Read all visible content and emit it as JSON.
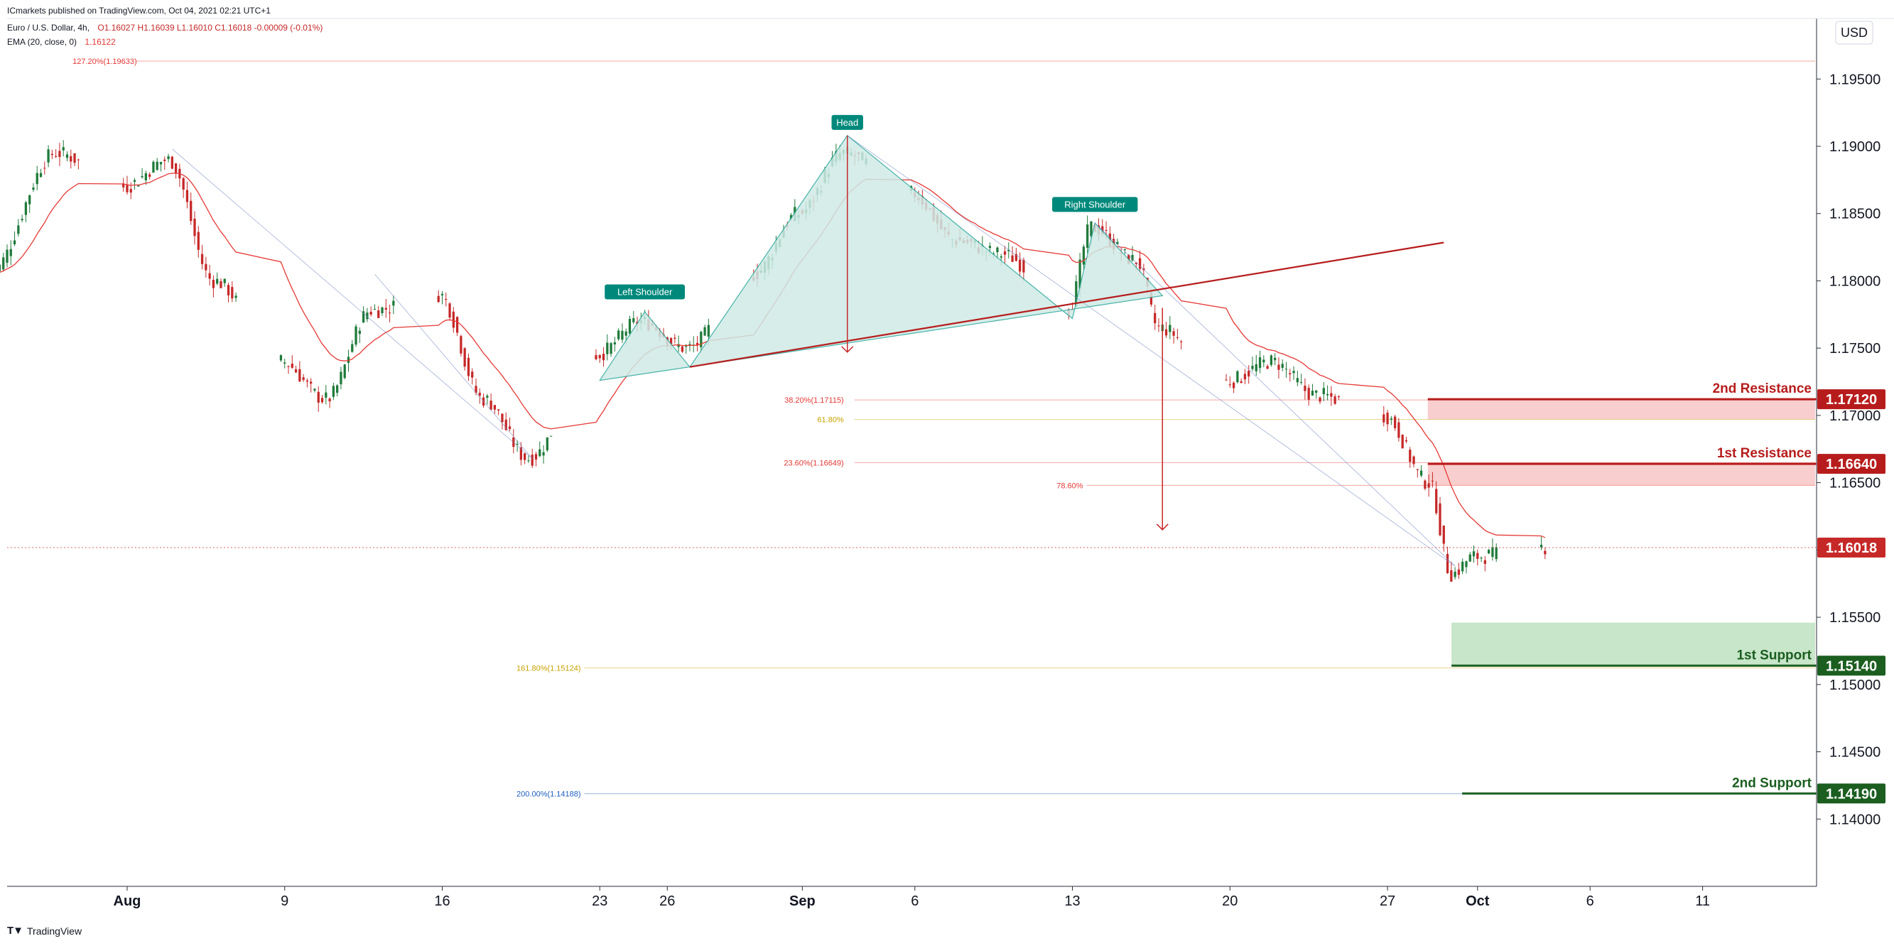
{
  "header": {
    "published": "ICmarkets published on TradingView.com, Oct 04, 2021 02:21 UTC+1",
    "symbol": "Euro / U.S. Dollar, 4h,",
    "ohlc": "O1.16027 H1.16039 L1.16010 C1.16018 -0.00009 (-0.01%)",
    "ema_label": "EMA (20, close, 0)",
    "ema_value": "1.16122"
  },
  "footer": {
    "brand": "TradingView"
  },
  "currency": "USD",
  "colors": {
    "bull": "#1e7a3a",
    "bear": "#c62828",
    "ema": "#e53935",
    "pattern_fill": "#cfeae6",
    "pattern_edge": "#26a69a",
    "resistance": "#b71c1c",
    "resistance_zone": "#f8c6c6",
    "support": "#1b5e20",
    "support_zone": "#c8e6c9",
    "neckline": "#b71c1c",
    "label_green": "#00897b",
    "price_tag": "#c62828"
  },
  "chart_data": {
    "type": "candlestick",
    "symbol": "EURUSD",
    "timeframe": "4h",
    "y_axis": {
      "ticks": [
        "1.19500",
        "1.19000",
        "1.18500",
        "1.18000",
        "1.17500",
        "1.17000",
        "1.16500",
        "1.16000",
        "1.15500",
        "1.15000",
        "1.14500",
        "1.14000"
      ],
      "range": [
        1.135,
        1.1995
      ]
    },
    "x_axis": {
      "ticks": [
        {
          "label": "Aug",
          "date": "2021-08-02"
        },
        {
          "label": "9",
          "date": "2021-08-09"
        },
        {
          "label": "16",
          "date": "2021-08-16"
        },
        {
          "label": "23",
          "date": "2021-08-23"
        },
        {
          "label": "26",
          "date": "2021-08-26"
        },
        {
          "label": "Sep",
          "date": "2021-09-01"
        },
        {
          "label": "6",
          "date": "2021-09-06"
        },
        {
          "label": "13",
          "date": "2021-09-13"
        },
        {
          "label": "20",
          "date": "2021-09-20"
        },
        {
          "label": "27",
          "date": "2021-09-27"
        },
        {
          "label": "Oct",
          "date": "2021-10-01"
        },
        {
          "label": "6",
          "date": "2021-10-06"
        },
        {
          "label": "11",
          "date": "2021-10-11"
        }
      ]
    },
    "price_path": [
      {
        "date": "2021-07-27",
        "price": 1.1805
      },
      {
        "date": "2021-07-30",
        "price": 1.1895
      },
      {
        "date": "2021-08-02",
        "price": 1.187
      },
      {
        "date": "2021-08-04",
        "price": 1.189
      },
      {
        "date": "2021-08-06",
        "price": 1.18
      },
      {
        "date": "2021-08-09",
        "price": 1.174
      },
      {
        "date": "2021-08-11",
        "price": 1.1712
      },
      {
        "date": "2021-08-13",
        "price": 1.1778
      },
      {
        "date": "2021-08-16",
        "price": 1.179
      },
      {
        "date": "2021-08-18",
        "price": 1.1712
      },
      {
        "date": "2021-08-20",
        "price": 1.1668
      },
      {
        "date": "2021-08-23",
        "price": 1.1745
      },
      {
        "date": "2021-08-25",
        "price": 1.177
      },
      {
        "date": "2021-08-27",
        "price": 1.175
      },
      {
        "date": "2021-08-30",
        "price": 1.1805
      },
      {
        "date": "2021-09-01",
        "price": 1.185
      },
      {
        "date": "2021-09-03",
        "price": 1.1895
      },
      {
        "date": "2021-09-06",
        "price": 1.1865
      },
      {
        "date": "2021-09-08",
        "price": 1.183
      },
      {
        "date": "2021-09-10",
        "price": 1.182
      },
      {
        "date": "2021-09-13",
        "price": 1.178
      },
      {
        "date": "2021-09-14",
        "price": 1.184
      },
      {
        "date": "2021-09-16",
        "price": 1.1815
      },
      {
        "date": "2021-09-17",
        "price": 1.1765
      },
      {
        "date": "2021-09-20",
        "price": 1.1725
      },
      {
        "date": "2021-09-22",
        "price": 1.174
      },
      {
        "date": "2021-09-24",
        "price": 1.1715
      },
      {
        "date": "2021-09-27",
        "price": 1.17
      },
      {
        "date": "2021-09-29",
        "price": 1.165
      },
      {
        "date": "2021-09-30",
        "price": 1.1582
      },
      {
        "date": "2021-10-01",
        "price": 1.1595
      },
      {
        "date": "2021-10-04",
        "price": 1.1602
      }
    ],
    "ema_period": 20,
    "current_price": {
      "value": 1.16018,
      "label": "1.16018"
    },
    "levels": [
      {
        "name": "2nd Resistance",
        "value": 1.1712,
        "label": "1.17120",
        "kind": "resistance",
        "zone_low": 1.1697
      },
      {
        "name": "1st Resistance",
        "value": 1.1664,
        "label": "1.16640",
        "kind": "resistance",
        "zone_low": 1.1648
      },
      {
        "name": "1st Support",
        "value": 1.1514,
        "label": "1.15140",
        "kind": "support",
        "zone_high": 1.1546
      },
      {
        "name": "2nd Support",
        "value": 1.1419,
        "label": "1.14190",
        "kind": "support"
      }
    ],
    "fibonacci": [
      {
        "label": "127.20%(1.19633)",
        "value": 1.19633,
        "color": "#e53935"
      },
      {
        "label": "38.20%(1.17115)",
        "value": 1.17115,
        "color": "#e53935"
      },
      {
        "label": "61.80%",
        "value": 1.1697,
        "color": "#c8a200"
      },
      {
        "label": "23.60%(1.16649)",
        "value": 1.16649,
        "color": "#e53935"
      },
      {
        "label": "78.60%",
        "value": 1.1648,
        "color": "#e53935"
      },
      {
        "label": "161.80%(1.15124)",
        "value": 1.15124,
        "color": "#c8a200"
      },
      {
        "label": "200.00%(1.14188)",
        "value": 1.14188,
        "color": "#1e5fbf"
      }
    ],
    "pattern": {
      "name": "head-and-shoulders",
      "labels": [
        {
          "text": "Left Shoulder",
          "date": "2021-08-25",
          "price": 1.1782
        },
        {
          "text": "Head",
          "date": "2021-09-03",
          "price": 1.1908
        },
        {
          "text": "Right Shoulder",
          "date": "2021-09-14",
          "price": 1.1847
        }
      ],
      "points": [
        {
          "date": "2021-08-23",
          "price": 1.1726
        },
        {
          "date": "2021-08-25",
          "price": 1.1777
        },
        {
          "date": "2021-08-27",
          "price": 1.1736
        },
        {
          "date": "2021-09-03",
          "price": 1.1908
        },
        {
          "date": "2021-09-13",
          "price": 1.1772
        },
        {
          "date": "2021-09-14",
          "price": 1.1843
        },
        {
          "date": "2021-09-17",
          "price": 1.1789
        }
      ],
      "neckline": [
        {
          "date": "2021-08-27",
          "price": 1.1736
        },
        {
          "date": "2021-09-21",
          "price": 1.1805
        }
      ],
      "head_to_neck_arrow": {
        "date": "2021-09-03",
        "from": 1.1908,
        "to": 1.1747
      },
      "target_arrow": {
        "date": "2021-09-17",
        "from": 1.178,
        "to": 1.1615
      }
    }
  }
}
